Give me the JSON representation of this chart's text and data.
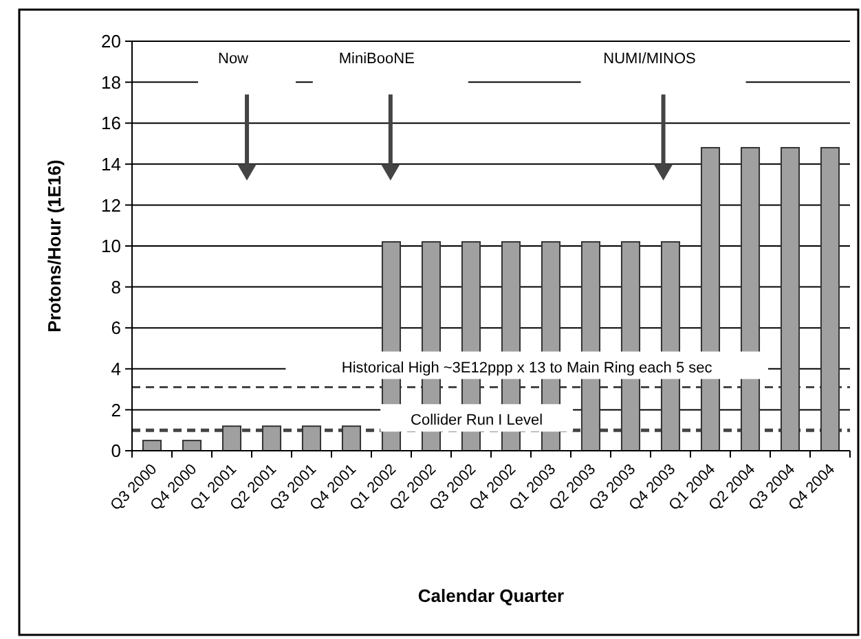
{
  "chart_data": {
    "type": "bar",
    "xlabel": "Calendar Quarter",
    "ylabel": "Protons/Hour (1E16)",
    "categories": [
      "Q3 2000",
      "Q4 2000",
      "Q1 2001",
      "Q2 2001",
      "Q3 2001",
      "Q4 2001",
      "Q1 2002",
      "Q2 2002",
      "Q3 2002",
      "Q4 2002",
      "Q1 2003",
      "Q2 2003",
      "Q3 2003",
      "Q4 2003",
      "Q1 2004",
      "Q2 2004",
      "Q3 2004",
      "Q4 2004"
    ],
    "values": [
      0.5,
      0.5,
      1.2,
      1.2,
      1.2,
      1.2,
      10.2,
      10.2,
      10.2,
      10.2,
      10.2,
      10.2,
      10.2,
      10.2,
      14.8,
      14.8,
      14.8,
      14.8
    ],
    "color": "#a0a0a0",
    "ylim": [
      0,
      20
    ],
    "yticks": [
      0,
      2,
      4,
      6,
      8,
      10,
      12,
      14,
      16,
      18,
      20
    ],
    "grid": "y",
    "ref_lines": [
      {
        "axis": "y",
        "value": 3.1,
        "label": "Historical High  ~3E12ppp x 13 to Main Ring each 5 sec",
        "line_style": "dashed"
      },
      {
        "axis": "y",
        "value": 1.0,
        "label": "Collider Run I Level",
        "line_style": "dashed"
      }
    ],
    "annotations": [
      "Now",
      "MiniBooNE",
      "NUMI/MINOS"
    ]
  }
}
